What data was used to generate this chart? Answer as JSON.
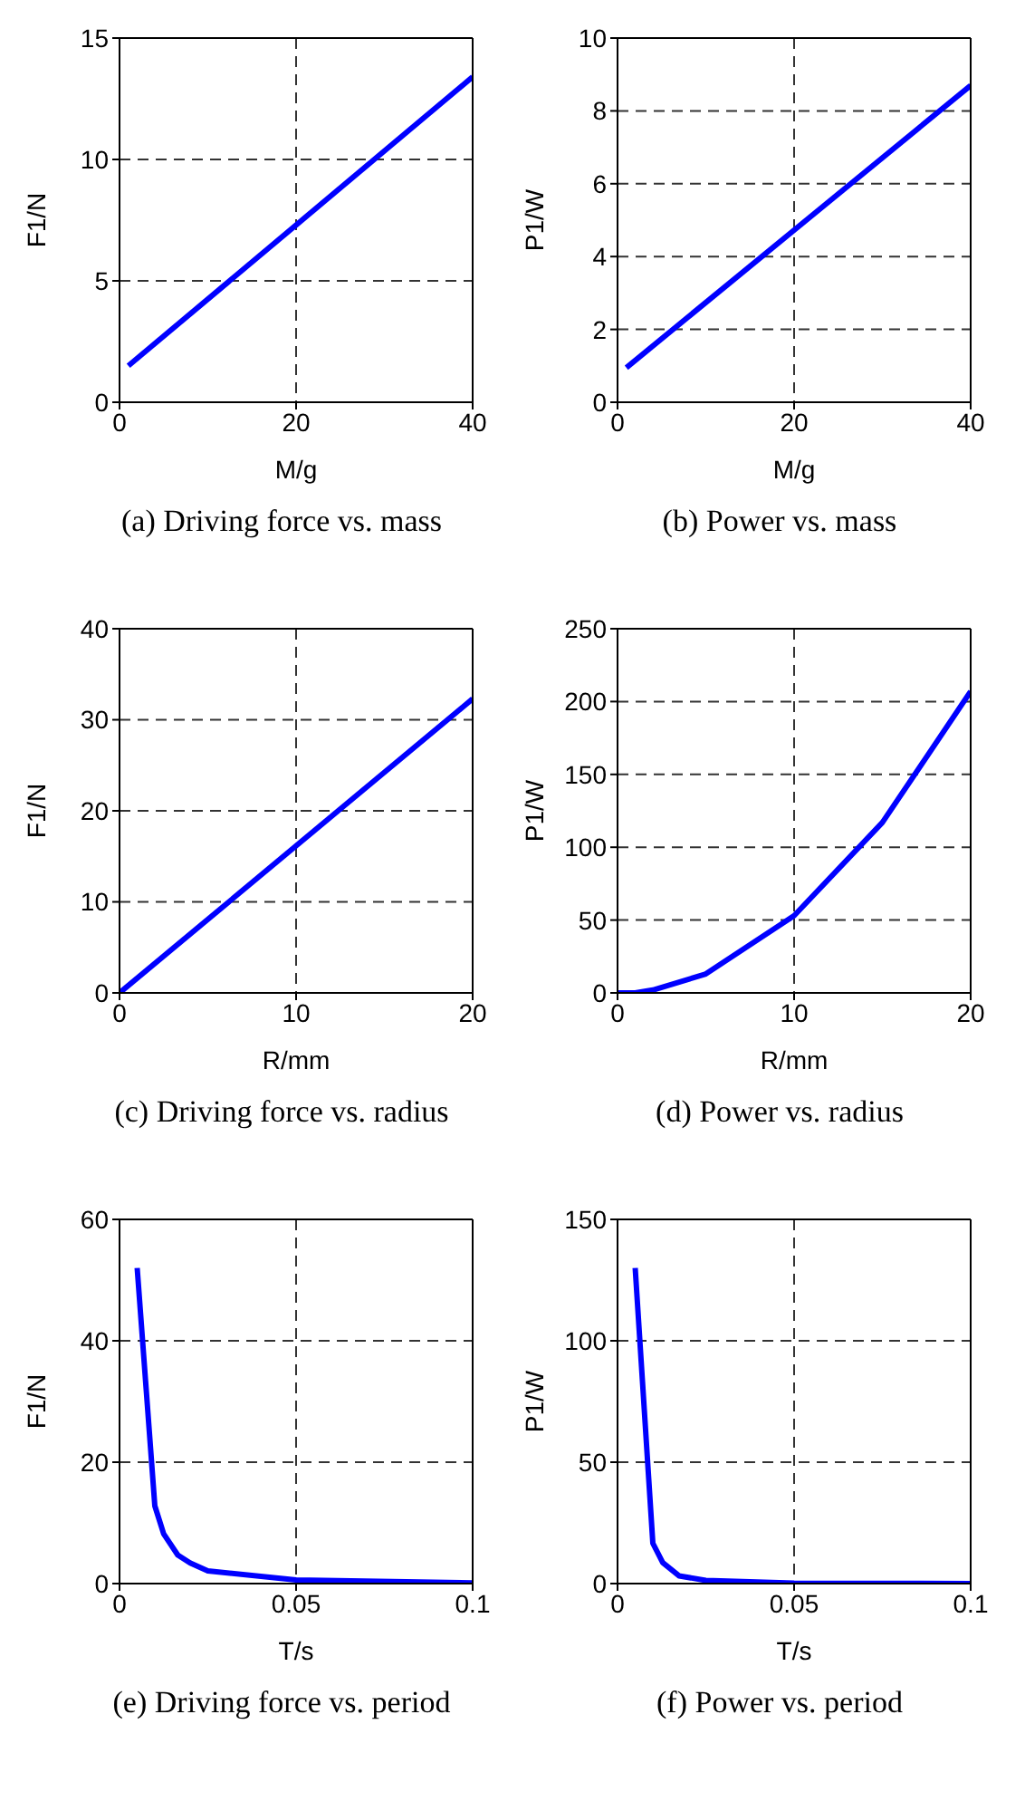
{
  "chart_data": [
    {
      "type": "line",
      "title": "(a) Driving force vs. mass",
      "xlabel": "M/g",
      "ylabel": "F1/N",
      "x": [
        1,
        40
      ],
      "values": [
        1.5,
        13.4
      ],
      "color": "#0000ff",
      "xlim": [
        0,
        40
      ],
      "xticks": [
        0,
        20,
        40
      ],
      "ylim": [
        0,
        15
      ],
      "yticks": [
        0,
        5,
        10,
        15
      ],
      "grid": true
    },
    {
      "type": "line",
      "title": "(b) Power vs. mass",
      "xlabel": "M/g",
      "ylabel": "P1/W",
      "x": [
        1,
        40
      ],
      "values": [
        0.95,
        8.7
      ],
      "color": "#0000ff",
      "xlim": [
        0,
        40
      ],
      "xticks": [
        0,
        20,
        40
      ],
      "ylim": [
        0,
        10
      ],
      "yticks": [
        0,
        2,
        4,
        6,
        8,
        10
      ],
      "grid": true
    },
    {
      "type": "line",
      "title": "(c) Driving force vs. radius",
      "xlabel": "R/mm",
      "ylabel": "F1/N",
      "x": [
        0,
        20
      ],
      "values": [
        0,
        32.3
      ],
      "color": "#0000ff",
      "xlim": [
        0,
        20
      ],
      "xticks": [
        0,
        10,
        20
      ],
      "ylim": [
        0,
        40
      ],
      "yticks": [
        0,
        10,
        20,
        30,
        40
      ],
      "grid": true
    },
    {
      "type": "line",
      "title": "(d) Power vs. radius",
      "xlabel": "R/mm",
      "ylabel": "P1/W",
      "x": [
        0,
        1,
        2,
        5,
        10,
        15,
        20
      ],
      "values": [
        0,
        0,
        2,
        13,
        53,
        117,
        207
      ],
      "color": "#0000ff",
      "xlim": [
        0,
        20
      ],
      "xticks": [
        0,
        10,
        20
      ],
      "ylim": [
        0,
        250
      ],
      "yticks": [
        0,
        50,
        100,
        150,
        200,
        250
      ],
      "grid": true
    },
    {
      "type": "line",
      "title": "(e) Driving force vs. period",
      "xlabel": "T/s",
      "ylabel": "F1/N",
      "x": [
        0.005,
        0.01,
        0.0125,
        0.0165,
        0.02,
        0.025,
        0.05,
        0.1
      ],
      "values": [
        52,
        12.8,
        8.2,
        4.7,
        3.4,
        2.1,
        0.6,
        0.1
      ],
      "color": "#0000ff",
      "xlim": [
        0,
        0.1
      ],
      "xticks": [
        0,
        0.05,
        0.1
      ],
      "ylim": [
        0,
        60
      ],
      "yticks": [
        0,
        20,
        40,
        60
      ],
      "grid": true
    },
    {
      "type": "line",
      "title": "(f) Power vs. period",
      "xlabel": "T/s",
      "ylabel": "P1/W",
      "x": [
        0.005,
        0.01,
        0.0128,
        0.0174,
        0.025,
        0.05,
        0.1
      ],
      "values": [
        130,
        16.6,
        8.6,
        3.2,
        1.3,
        0.2,
        0
      ],
      "color": "#0000ff",
      "xlim": [
        0,
        0.1
      ],
      "xticks": [
        0,
        0.05,
        0.1
      ],
      "ylim": [
        0,
        150
      ],
      "yticks": [
        0,
        50,
        100,
        150
      ],
      "grid": true
    }
  ]
}
